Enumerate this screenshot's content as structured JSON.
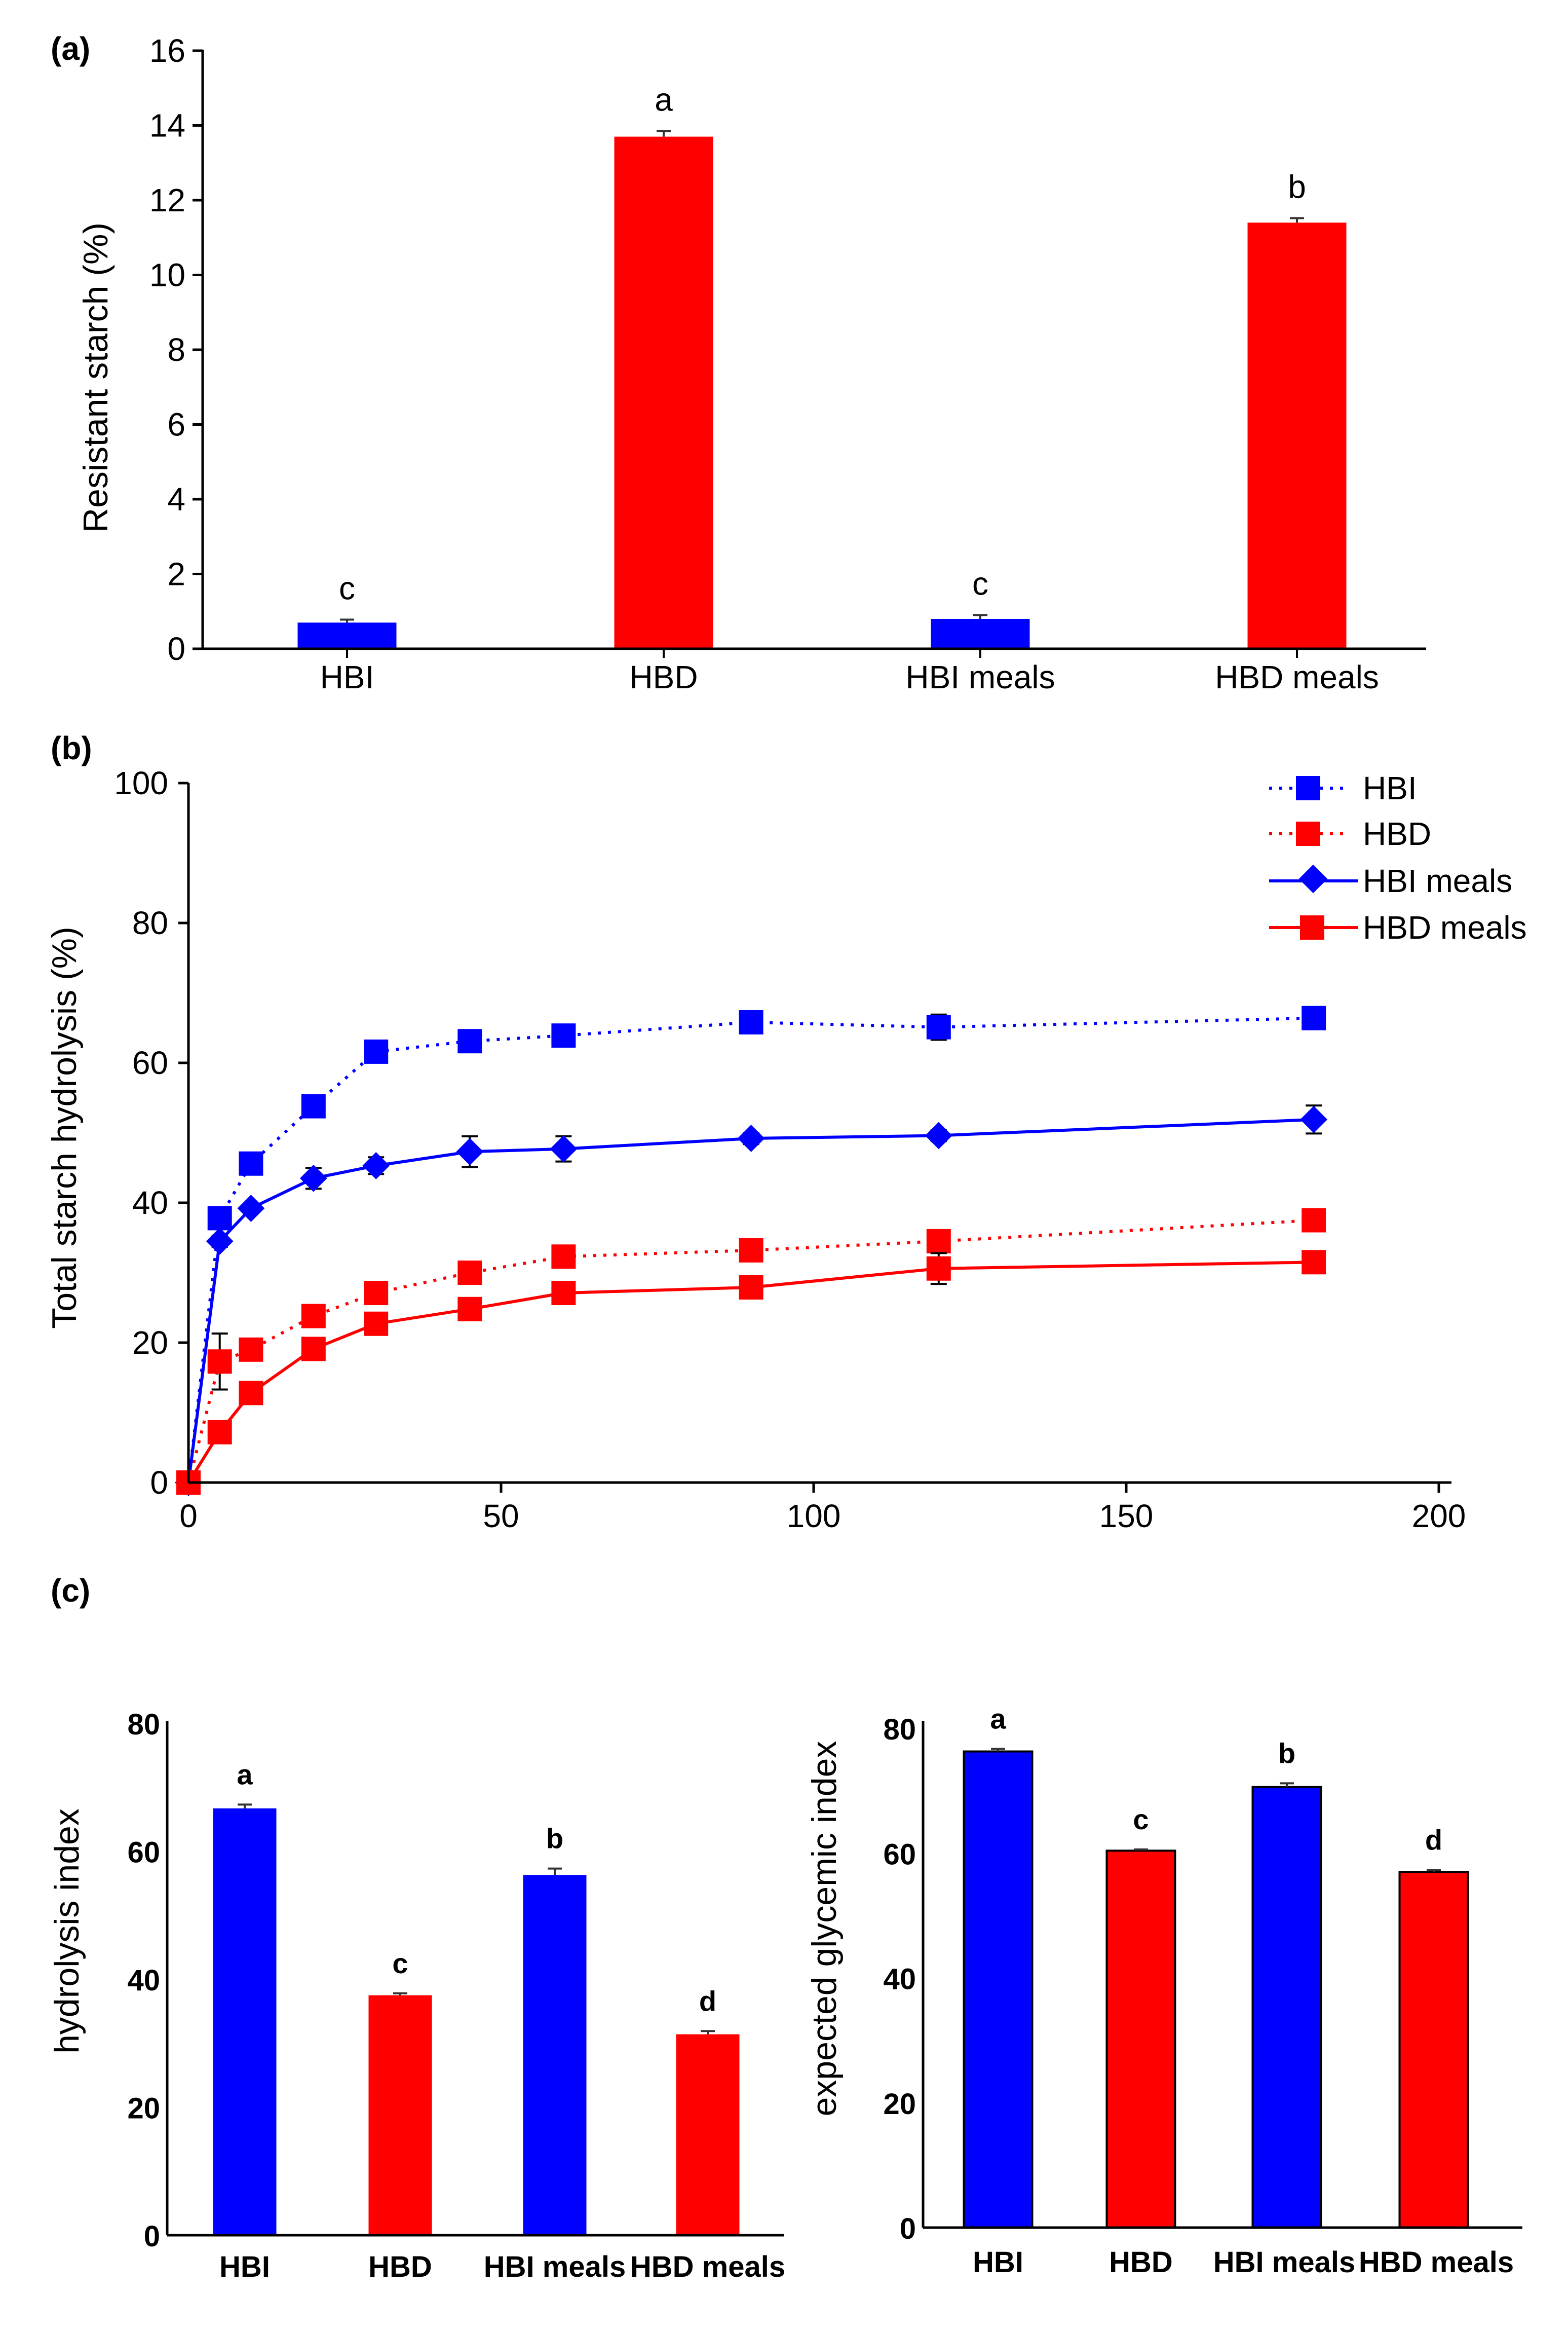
{
  "colors": {
    "blue": "#0000ff",
    "red": "#ff0000",
    "axis": "#000000"
  },
  "chart_data": [
    {
      "panel": "(a)",
      "type": "bar",
      "ylabel": "Resistant starch (%)",
      "ylim": [
        0,
        16
      ],
      "yticks": [
        "0",
        "2",
        "4",
        "6",
        "8",
        "10",
        "12",
        "14",
        "16"
      ],
      "categories": [
        "HBI",
        "HBD",
        "HBI meals",
        "HBD meals"
      ],
      "values": [
        0.7,
        13.7,
        0.8,
        11.4
      ],
      "errors": [
        0.08,
        0.15,
        0.1,
        0.12
      ],
      "letters": [
        "c",
        "a",
        "c",
        "b"
      ],
      "bar_colors": [
        "blue",
        "red",
        "blue",
        "red"
      ]
    },
    {
      "panel": "(b)",
      "type": "line",
      "ylabel": "Total starch hydrolysis (%)",
      "xlabel": "",
      "xlim": [
        0,
        200
      ],
      "ylim": [
        0,
        100
      ],
      "xticks": [
        "0",
        "50",
        "100",
        "150",
        "200"
      ],
      "yticks": [
        "0",
        "20",
        "40",
        "60",
        "80",
        "100"
      ],
      "legend_position": "top-right",
      "x": [
        0,
        5,
        10,
        20,
        30,
        45,
        60,
        90,
        120,
        180
      ],
      "series": [
        {
          "name": "HBI",
          "style": "dotted",
          "marker": "square",
          "color": "blue",
          "values": [
            0,
            37.8,
            45.6,
            53.8,
            61.6,
            63.1,
            63.9,
            65.8,
            65.1,
            66.4
          ],
          "errors": [
            0,
            0.8,
            0.6,
            0.6,
            0.6,
            0.6,
            0.6,
            1.2,
            1.8,
            0.6
          ]
        },
        {
          "name": "HBD",
          "style": "dotted",
          "marker": "square",
          "color": "red",
          "values": [
            0,
            17.3,
            19.0,
            23.8,
            27.1,
            30.0,
            32.3,
            33.2,
            34.5,
            37.5
          ],
          "errors": [
            0,
            4.0,
            0.6,
            0.6,
            0.6,
            0.6,
            0.6,
            0.6,
            0.6,
            0.6
          ]
        },
        {
          "name": "HBI meals",
          "style": "solid",
          "marker": "diamond",
          "color": "blue",
          "values": [
            0,
            34.5,
            39.2,
            43.5,
            45.3,
            47.3,
            47.7,
            49.2,
            49.6,
            51.9
          ],
          "errors": [
            0,
            0.8,
            0.6,
            1.5,
            1.2,
            2.2,
            1.8,
            0.8,
            0.8,
            2.0
          ]
        },
        {
          "name": "HBD meals",
          "style": "solid",
          "marker": "square",
          "color": "red",
          "values": [
            0,
            7.2,
            12.8,
            19.1,
            22.7,
            24.8,
            27.1,
            27.9,
            30.6,
            31.5
          ],
          "errors": [
            0,
            0.5,
            0.5,
            0.5,
            0.5,
            0.5,
            0.5,
            0.5,
            2.2,
            0.5
          ]
        }
      ]
    },
    {
      "panel": "(c)",
      "type": "bar",
      "ylabel": "hydrolysis index",
      "ylim": [
        0,
        80
      ],
      "yticks": [
        "0",
        "20",
        "40",
        "60",
        "80"
      ],
      "categories": [
        "HBI",
        "HBD",
        "HBI meals",
        "HBD meals"
      ],
      "values": [
        66.7,
        37.5,
        56.3,
        31.4
      ],
      "errors": [
        0.6,
        0.3,
        1.0,
        0.5
      ],
      "letters": [
        "a",
        "c",
        "b",
        "d"
      ],
      "bar_colors": [
        "blue",
        "red",
        "blue",
        "red"
      ]
    },
    {
      "panel": "",
      "type": "bar",
      "ylabel": "expected glycemic index",
      "ylim": [
        0,
        80
      ],
      "yticks": [
        "0",
        "20",
        "40",
        "60",
        "80"
      ],
      "categories": [
        "HBI",
        "HBD",
        "HBI meals",
        "HBD meals"
      ],
      "values": [
        76.3,
        60.4,
        70.6,
        57.0
      ],
      "errors": [
        0.4,
        0.2,
        0.6,
        0.3
      ],
      "letters": [
        "a",
        "c",
        "b",
        "d"
      ],
      "bar_colors": [
        "blue",
        "red",
        "blue",
        "red"
      ]
    }
  ]
}
